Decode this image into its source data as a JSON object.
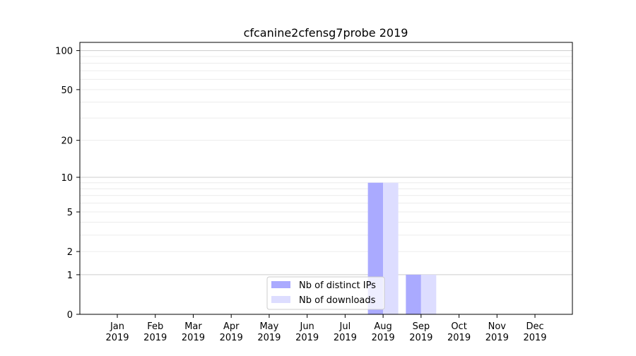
{
  "chart_data": {
    "type": "bar",
    "title": "cfcanine2cfensg7probe 2019",
    "xlabel": "",
    "ylabel": "",
    "yscale": "symlog",
    "ylim": [
      0,
      115
    ],
    "grid": true,
    "legend_position": "lower-center",
    "categories": [
      "Jan\n2019",
      "Feb\n2019",
      "Mar\n2019",
      "Apr\n2019",
      "May\n2019",
      "Jun\n2019",
      "Jul\n2019",
      "Aug\n2019",
      "Sep\n2019",
      "Oct\n2019",
      "Nov\n2019",
      "Dec\n2019"
    ],
    "category_labels": [
      [
        "Jan",
        "2019"
      ],
      [
        "Feb",
        "2019"
      ],
      [
        "Mar",
        "2019"
      ],
      [
        "Apr",
        "2019"
      ],
      [
        "May",
        "2019"
      ],
      [
        "Jun",
        "2019"
      ],
      [
        "Jul",
        "2019"
      ],
      [
        "Aug",
        "2019"
      ],
      [
        "Sep",
        "2019"
      ],
      [
        "Oct",
        "2019"
      ],
      [
        "Nov",
        "2019"
      ],
      [
        "Dec",
        "2019"
      ]
    ],
    "yticks": [
      0,
      1,
      2,
      5,
      10,
      20,
      50,
      100
    ],
    "ytick_labels": [
      "0",
      "1",
      "2",
      "5",
      "10",
      "20",
      "50",
      "100"
    ],
    "series": [
      {
        "name": "Nb of distinct IPs",
        "color": "#aaaaff",
        "values": [
          0,
          0,
          0,
          0,
          0,
          0,
          0,
          9,
          1,
          0,
          0,
          0
        ]
      },
      {
        "name": "Nb of downloads",
        "color": "#ddddff",
        "values": [
          0,
          0,
          0,
          0,
          0,
          0,
          0,
          9,
          1,
          0,
          0,
          0
        ]
      }
    ]
  }
}
